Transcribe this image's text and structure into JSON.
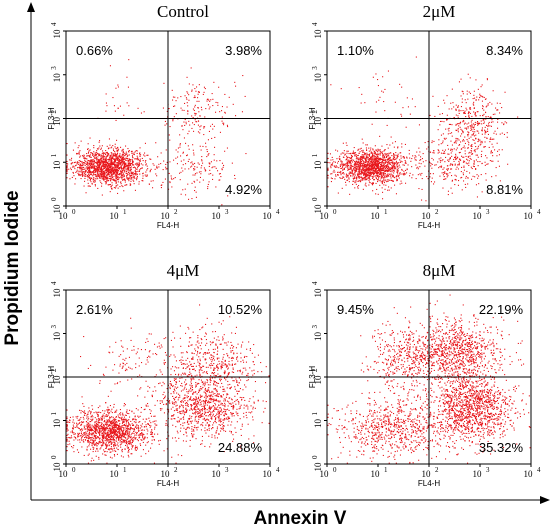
{
  "figure": {
    "y_label": "Propidium Iodide",
    "x_label": "Annexin V"
  },
  "chart_data": [
    {
      "type": "scatter",
      "title": "Control",
      "xlabel": "FL4-H",
      "ylabel": "FL3-H",
      "x_scale": "log",
      "y_scale": "log",
      "xlim": [
        1,
        10000
      ],
      "ylim": [
        1,
        10000
      ],
      "gate": {
        "x": 100,
        "y": 100
      },
      "quadrants": {
        "upper_left": "0.66%",
        "upper_right": "3.98%",
        "lower_right": "4.92%"
      },
      "point_color": "#e8161b",
      "clusters": [
        {
          "n": 1500,
          "log_x_center": 0.85,
          "log_y_center": 0.9,
          "log_x_spread": 0.35,
          "log_y_spread": 0.2
        },
        {
          "n": 180,
          "log_x_center": 2.6,
          "log_y_center": 2.1,
          "log_x_spread": 0.35,
          "log_y_spread": 0.45
        },
        {
          "n": 160,
          "log_x_center": 2.5,
          "log_y_center": 0.9,
          "log_x_spread": 0.4,
          "log_y_spread": 0.3
        },
        {
          "n": 25,
          "log_x_center": 1.0,
          "log_y_center": 2.4,
          "log_x_spread": 0.4,
          "log_y_spread": 0.4
        }
      ],
      "x_ticks": [
        "10",
        "10",
        "10",
        "10",
        "10"
      ],
      "y_ticks": [
        "10",
        "10",
        "10",
        "10",
        "10"
      ],
      "tick_exponents": [
        "0",
        "1",
        "2",
        "3",
        "4"
      ]
    },
    {
      "type": "scatter",
      "title": "2μM",
      "xlabel": "FL4-H",
      "ylabel": "FL3-H",
      "x_scale": "log",
      "y_scale": "log",
      "xlim": [
        1,
        10000
      ],
      "ylim": [
        1,
        10000
      ],
      "gate": {
        "x": 100,
        "y": 100
      },
      "quadrants": {
        "upper_left": "1.10%",
        "upper_right": "8.34%",
        "lower_right": "8.81%"
      },
      "point_color": "#e8161b",
      "clusters": [
        {
          "n": 1400,
          "log_x_center": 0.85,
          "log_y_center": 0.9,
          "log_x_spread": 0.35,
          "log_y_spread": 0.2
        },
        {
          "n": 380,
          "log_x_center": 2.85,
          "log_y_center": 1.9,
          "log_x_spread": 0.3,
          "log_y_spread": 0.4
        },
        {
          "n": 300,
          "log_x_center": 2.5,
          "log_y_center": 1.0,
          "log_x_spread": 0.4,
          "log_y_spread": 0.3
        },
        {
          "n": 40,
          "log_x_center": 1.1,
          "log_y_center": 2.4,
          "log_x_spread": 0.4,
          "log_y_spread": 0.4
        }
      ],
      "x_ticks": [
        "10",
        "10",
        "10",
        "10",
        "10"
      ],
      "y_ticks": [
        "10",
        "10",
        "10",
        "10",
        "10"
      ],
      "tick_exponents": [
        "0",
        "1",
        "2",
        "3",
        "4"
      ]
    },
    {
      "type": "scatter",
      "title": "4μM",
      "xlabel": "FL4-H",
      "ylabel": "FL3-H",
      "x_scale": "log",
      "y_scale": "log",
      "xlim": [
        1,
        10000
      ],
      "ylim": [
        1,
        10000
      ],
      "gate": {
        "x": 100,
        "y": 100
      },
      "quadrants": {
        "upper_left": "2.61%",
        "upper_right": "10.52%",
        "lower_right": "24.88%"
      },
      "point_color": "#e8161b",
      "clusters": [
        {
          "n": 1300,
          "log_x_center": 0.85,
          "log_y_center": 0.75,
          "log_x_spread": 0.4,
          "log_y_spread": 0.25
        },
        {
          "n": 900,
          "log_x_center": 2.7,
          "log_y_center": 1.3,
          "log_x_spread": 0.45,
          "log_y_spread": 0.4
        },
        {
          "n": 450,
          "log_x_center": 2.9,
          "log_y_center": 2.3,
          "log_x_spread": 0.45,
          "log_y_spread": 0.4
        },
        {
          "n": 110,
          "log_x_center": 1.4,
          "log_y_center": 2.4,
          "log_x_spread": 0.4,
          "log_y_spread": 0.35
        }
      ],
      "x_ticks": [
        "10",
        "10",
        "10",
        "10",
        "10"
      ],
      "y_ticks": [
        "10",
        "10",
        "10",
        "10",
        "10"
      ],
      "tick_exponents": [
        "0",
        "1",
        "2",
        "3",
        "4"
      ]
    },
    {
      "type": "scatter",
      "title": "8μM",
      "xlabel": "FL4-H",
      "ylabel": "FL3-H",
      "x_scale": "log",
      "y_scale": "log",
      "xlim": [
        1,
        10000
      ],
      "ylim": [
        1,
        10000
      ],
      "gate": {
        "x": 100,
        "y": 100
      },
      "quadrants": {
        "upper_left": "9.45%",
        "upper_right": "22.19%",
        "lower_right": "35.32%"
      },
      "point_color": "#e8161b",
      "clusters": [
        {
          "n": 700,
          "log_x_center": 1.3,
          "log_y_center": 0.8,
          "log_x_spread": 0.55,
          "log_y_spread": 0.35
        },
        {
          "n": 1200,
          "log_x_center": 2.85,
          "log_y_center": 1.3,
          "log_x_spread": 0.4,
          "log_y_spread": 0.4
        },
        {
          "n": 900,
          "log_x_center": 2.5,
          "log_y_center": 2.6,
          "log_x_spread": 0.45,
          "log_y_spread": 0.35
        },
        {
          "n": 350,
          "log_x_center": 1.5,
          "log_y_center": 2.4,
          "log_x_spread": 0.35,
          "log_y_spread": 0.4
        }
      ],
      "x_ticks": [
        "10",
        "10",
        "10",
        "10",
        "10"
      ],
      "y_ticks": [
        "10",
        "10",
        "10",
        "10",
        "10"
      ],
      "tick_exponents": [
        "0",
        "1",
        "2",
        "3",
        "4"
      ]
    }
  ]
}
